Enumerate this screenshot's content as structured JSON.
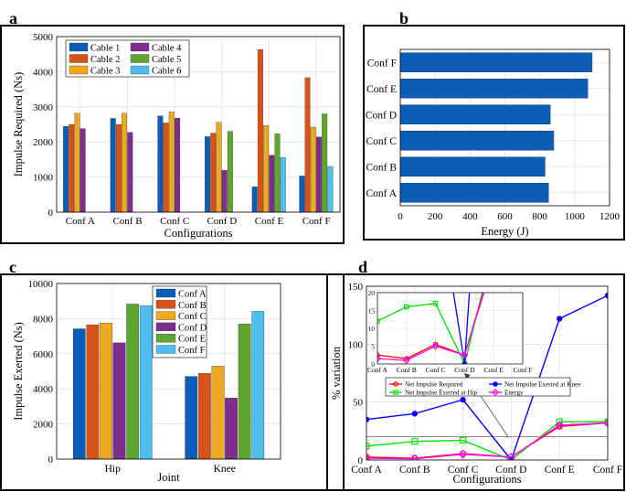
{
  "panel_letters": [
    "a",
    "b",
    "c",
    "d"
  ],
  "chart_data": [
    {
      "panel": "a",
      "type": "bar",
      "title": "",
      "xlabel": "Configurations",
      "ylabel": "Impulse Required (Ns)",
      "ylim": [
        0,
        5000
      ],
      "yticks": [
        0,
        1000,
        2000,
        3000,
        4000,
        5000
      ],
      "grid": true,
      "legend_position": "top-left",
      "categories": [
        "Conf A",
        "Conf B",
        "Conf C",
        "Conf D",
        "Conf E",
        "Conf F"
      ],
      "series": [
        {
          "name": "Cable 1",
          "color": "#0b5db8",
          "values": [
            2440,
            2670,
            2740,
            2150,
            720,
            1030
          ]
        },
        {
          "name": "Cable 2",
          "color": "#d95319",
          "values": [
            2500,
            2500,
            2540,
            2250,
            4630,
            3830
          ]
        },
        {
          "name": "Cable 3",
          "color": "#eda91f",
          "values": [
            2820,
            2820,
            2860,
            2560,
            2470,
            2420
          ]
        },
        {
          "name": "Cable 4",
          "color": "#7e2f8e",
          "values": [
            2380,
            2270,
            2680,
            1190,
            1620,
            2140
          ]
        },
        {
          "name": "Cable 5",
          "color": "#5fa631",
          "values": [
            0,
            0,
            0,
            2300,
            2230,
            2800
          ]
        },
        {
          "name": "Cable 6",
          "color": "#4dbeee",
          "values": [
            0,
            0,
            0,
            0,
            1560,
            1300
          ]
        }
      ]
    },
    {
      "panel": "b",
      "type": "bar",
      "orientation": "horizontal",
      "title": "",
      "xlabel": "Energy  (J)",
      "ylabel": "",
      "xlim": [
        0,
        1200
      ],
      "xticks": [
        0,
        200,
        400,
        600,
        800,
        1000,
        1200
      ],
      "grid": true,
      "color": "#0b5db8",
      "categories": [
        "Conf A",
        "Conf B",
        "Conf C",
        "Conf D",
        "Conf E",
        "Conf F"
      ],
      "values": [
        850,
        830,
        880,
        860,
        1075,
        1100
      ]
    },
    {
      "panel": "c",
      "type": "bar",
      "title": "",
      "xlabel": "Joint",
      "ylabel": "Impulse Exerted (Ns)",
      "ylim": [
        0,
        10000
      ],
      "yticks": [
        0,
        2000,
        4000,
        6000,
        8000,
        10000
      ],
      "grid": true,
      "legend_position": "top-right",
      "categories": [
        "Hip",
        "Knee"
      ],
      "series": [
        {
          "name": "Conf A",
          "color": "#0b5db8",
          "values": [
            7420,
            4710
          ]
        },
        {
          "name": "Conf B",
          "color": "#d95319",
          "values": [
            7650,
            4880
          ]
        },
        {
          "name": "Conf C",
          "color": "#eda91f",
          "values": [
            7750,
            5300
          ]
        },
        {
          "name": "Conf D",
          "color": "#7e2f8e",
          "values": [
            6620,
            3480
          ]
        },
        {
          "name": "Conf E",
          "color": "#5fa631",
          "values": [
            8830,
            7700
          ]
        },
        {
          "name": "Conf F",
          "color": "#4dbeee",
          "values": [
            8740,
            8420
          ]
        }
      ]
    },
    {
      "panel": "d",
      "type": "line",
      "title": "",
      "xlabel": "Configurations",
      "ylabel": "% variation",
      "ylim": [
        0,
        150
      ],
      "yticks": [
        0,
        50,
        100,
        150
      ],
      "grid": true,
      "categories": [
        "Conf A",
        "Conf B",
        "Conf C",
        "Conf D",
        "Conf E",
        "Conf F"
      ],
      "series": [
        {
          "name": "Net Impulse Required",
          "color": "#ff0000",
          "marker": "circle",
          "values": [
            2.5,
            1.5,
            5.5,
            2.5,
            29,
            32
          ]
        },
        {
          "name": "Net Impulse Exerted at Hip",
          "color": "#00e000",
          "marker": "square",
          "values": [
            12,
            16,
            17,
            0,
            33,
            33
          ]
        },
        {
          "name": "Net Impulse Exerted at Knee",
          "color": "#0000ff",
          "marker": "circle",
          "values": [
            35,
            40,
            52,
            0,
            122,
            142
          ]
        },
        {
          "name": "Energy",
          "color": "#ff00ff",
          "marker": "diamond",
          "values": [
            1.5,
            1,
            5,
            2.5,
            30,
            32
          ]
        }
      ],
      "reference_line": 20,
      "inset": {
        "ylim": [
          0,
          20
        ],
        "yticks": [
          0,
          5,
          10,
          15,
          20
        ],
        "categories": [
          "Conf A",
          "Conf B",
          "Conf C",
          "Conf D",
          "Conf E",
          "Conf F"
        ]
      }
    }
  ]
}
